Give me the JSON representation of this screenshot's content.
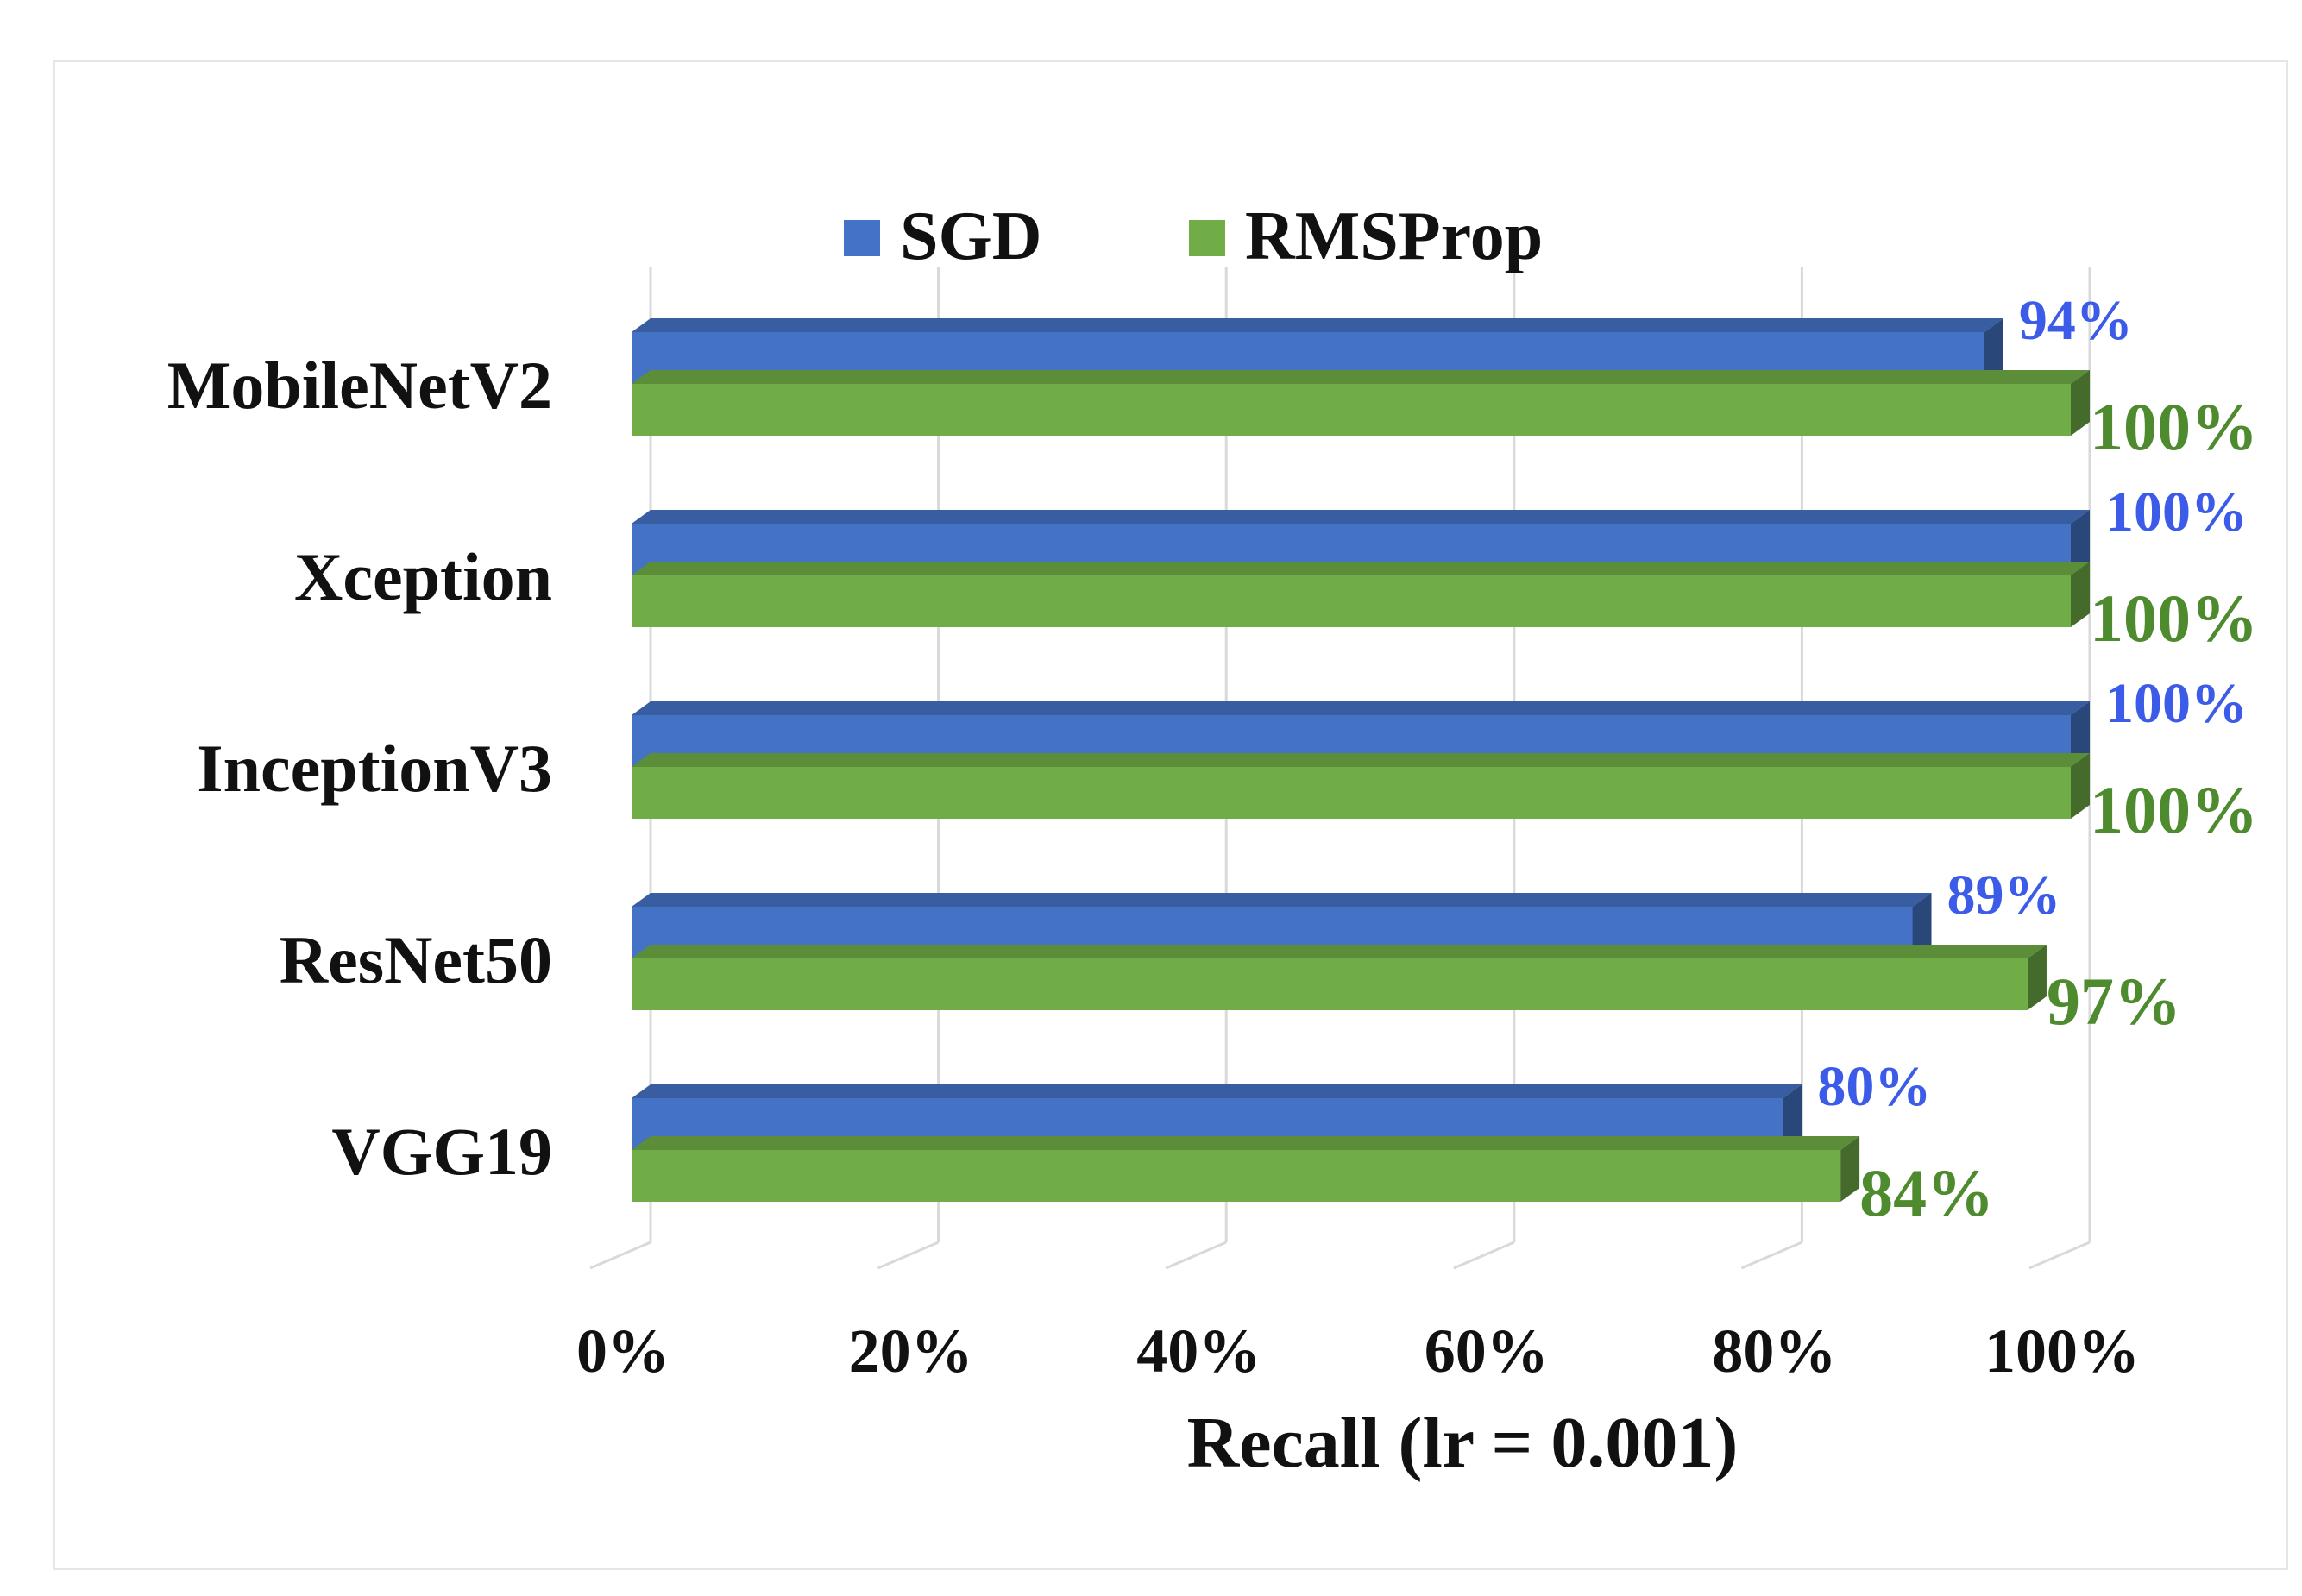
{
  "chart_data": {
    "type": "bar",
    "orientation": "horizontal",
    "style": "3d",
    "categories": [
      "MobileNetV2",
      "Xception",
      "InceptionV3",
      "ResNet50",
      "VGG19"
    ],
    "series": [
      {
        "name": "SGD",
        "values": [
          94,
          100,
          100,
          89,
          80
        ],
        "labels": [
          "94%",
          "100%",
          "100%",
          "89%",
          "80%"
        ],
        "color": "#4472C4",
        "label_color": "#3B5BE8"
      },
      {
        "name": "RMSProp",
        "values": [
          100,
          100,
          100,
          97,
          84
        ],
        "labels": [
          "100%",
          "100%",
          "100%",
          "97%",
          "84%"
        ],
        "color": "#70AD47",
        "label_color": "#4E8A2E"
      }
    ],
    "xlabel": "Recall (lr = 0.001)",
    "ylabel": "",
    "xlim": [
      0,
      100
    ],
    "ticks": [
      "0%",
      "20%",
      "40%",
      "60%",
      "80%",
      "100%"
    ],
    "grid": true,
    "legend_position": "top"
  }
}
